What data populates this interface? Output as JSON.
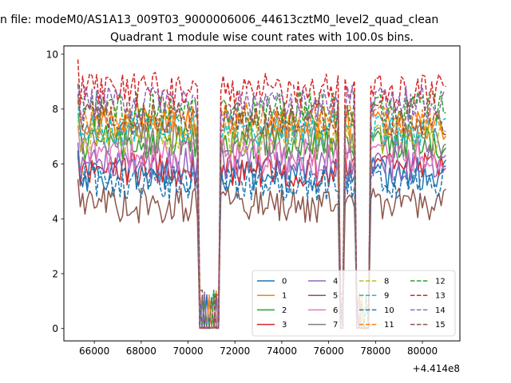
{
  "figure": {
    "suptitle": "n file: modeM0/AS1A13_009T03_9000006006_44613cztM0_level2_quad_clean"
  },
  "chart_data": {
    "type": "line",
    "title": "Quadrant 1 module wise count rates with 100.0s bins.",
    "xlabel": "",
    "ylabel": "",
    "x_offset_label": "+4.414e8",
    "x_offset_value": 441400000,
    "xlim": [
      64700,
      81600
    ],
    "ylim": [
      -0.45,
      10.3
    ],
    "x_ticks": [
      66000,
      68000,
      70000,
      72000,
      74000,
      76000,
      78000,
      80000
    ],
    "x_tick_labels": [
      "66000",
      "68000",
      "70000",
      "72000",
      "74000",
      "76000",
      "78000",
      "80000"
    ],
    "y_ticks": [
      0,
      2,
      4,
      6,
      8,
      10
    ],
    "y_tick_labels": [
      "0",
      "2",
      "4",
      "6",
      "8",
      "10"
    ],
    "grid": false,
    "legend": {
      "placement": "lower-right",
      "columns": 4
    },
    "time_range": {
      "start": 65300,
      "end": 81000,
      "bin": 100
    },
    "gaps": [
      {
        "start": 70500,
        "end": 71300
      },
      {
        "start": 76500,
        "end": 76600
      },
      {
        "start": 77200,
        "end": 77700
      }
    ],
    "series": [
      {
        "name": "0",
        "color": "#1f77b4",
        "dash": "solid",
        "mean": 5.6
      },
      {
        "name": "1",
        "color": "#ff7f0e",
        "dash": "solid",
        "mean": 7.5
      },
      {
        "name": "2",
        "color": "#2ca02c",
        "dash": "solid",
        "mean": 6.8
      },
      {
        "name": "3",
        "color": "#d62728",
        "dash": "solid",
        "mean": 5.8
      },
      {
        "name": "4",
        "color": "#9467bd",
        "dash": "solid",
        "mean": 6.0
      },
      {
        "name": "5",
        "color": "#8c564b",
        "dash": "solid",
        "mean": 4.5
      },
      {
        "name": "6",
        "color": "#e377c2",
        "dash": "solid",
        "mean": 6.3
      },
      {
        "name": "7",
        "color": "#7f7f7f",
        "dash": "solid",
        "mean": 6.9
      },
      {
        "name": "8",
        "color": "#bcbd22",
        "dash": "dashed",
        "mean": 7.0
      },
      {
        "name": "9",
        "color": "#17becf",
        "dash": "dashed",
        "mean": 7.3
      },
      {
        "name": "10",
        "color": "#1f77b4",
        "dash": "dashed",
        "mean": 5.3
      },
      {
        "name": "11",
        "color": "#ff7f0e",
        "dash": "dashed",
        "mean": 7.6
      },
      {
        "name": "12",
        "color": "#2ca02c",
        "dash": "dashed",
        "mean": 8.0
      },
      {
        "name": "13",
        "color": "#d62728",
        "dash": "dashed",
        "mean": 8.7
      },
      {
        "name": "14",
        "color": "#9467bd",
        "dash": "dashed",
        "mean": 8.2
      },
      {
        "name": "15",
        "color": "#8c564b",
        "dash": "dashed",
        "mean": 7.7
      }
    ]
  }
}
